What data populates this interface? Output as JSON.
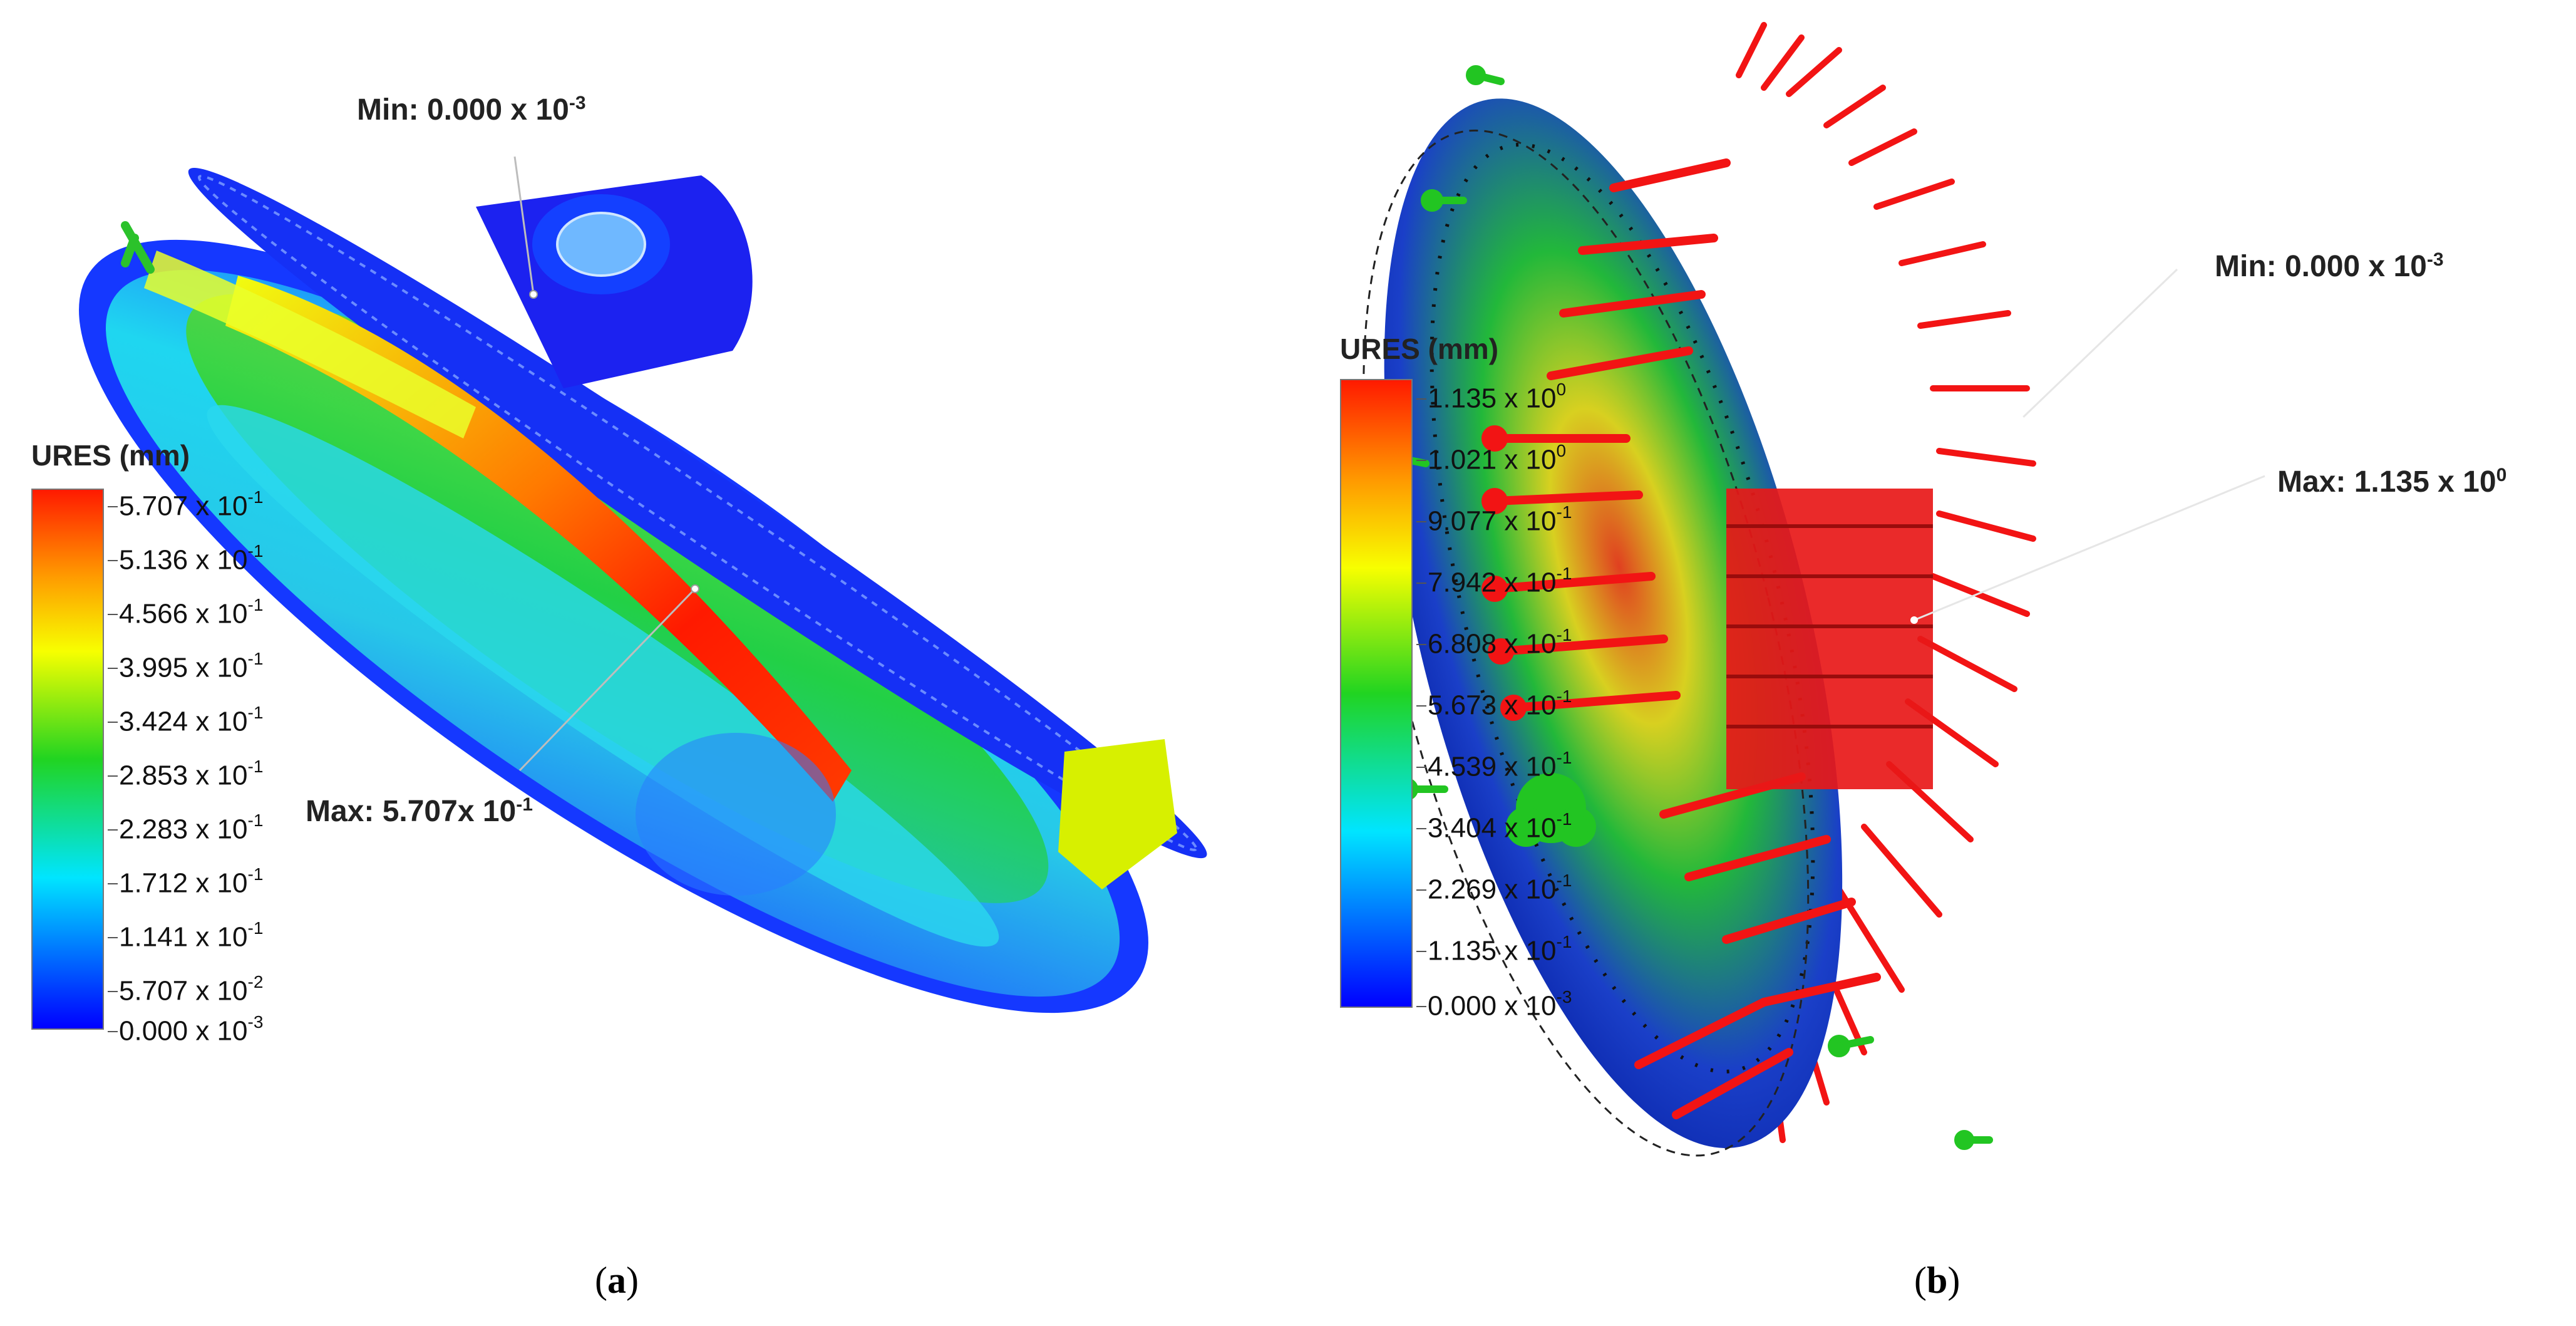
{
  "panel_a": {
    "legend": {
      "title": "URES (mm)",
      "ticks": [
        {
          "mantissa": "5.707",
          "exp": "-1"
        },
        {
          "mantissa": "5.136",
          "exp": "-1"
        },
        {
          "mantissa": "4.566",
          "exp": "-1"
        },
        {
          "mantissa": "3.995",
          "exp": "-1"
        },
        {
          "mantissa": "3.424",
          "exp": "-1"
        },
        {
          "mantissa": "2.853",
          "exp": "-1"
        },
        {
          "mantissa": "2.283",
          "exp": "-1"
        },
        {
          "mantissa": "1.712",
          "exp": "-1"
        },
        {
          "mantissa": "1.141",
          "exp": "-1"
        },
        {
          "mantissa": "5.707",
          "exp": "-2"
        },
        {
          "mantissa": "0.000",
          "exp": "-3"
        }
      ]
    },
    "min_label": {
      "text": "Min: 0.000 x 10",
      "exp": "-3"
    },
    "max_label": {
      "text": "Max: 5.707x 10",
      "exp": "-1"
    },
    "caption": {
      "open": "(",
      "letter": "a",
      "close": ")"
    }
  },
  "panel_b": {
    "legend": {
      "title": "URES (mm)",
      "ticks": [
        {
          "mantissa": "1.135",
          "exp": "0"
        },
        {
          "mantissa": "1.021",
          "exp": "0"
        },
        {
          "mantissa": "9.077",
          "exp": "-1"
        },
        {
          "mantissa": "7.942",
          "exp": "-1"
        },
        {
          "mantissa": "6.808",
          "exp": "-1"
        },
        {
          "mantissa": "5.673",
          "exp": "-1"
        },
        {
          "mantissa": "4.539",
          "exp": "-1"
        },
        {
          "mantissa": "3.404",
          "exp": "-1"
        },
        {
          "mantissa": "2.269",
          "exp": "-1"
        },
        {
          "mantissa": "1.135",
          "exp": "-1"
        },
        {
          "mantissa": "0.000",
          "exp": "-3"
        }
      ]
    },
    "min_label": {
      "text": "Min: 0.000 x 10",
      "exp": "-3"
    },
    "max_label": {
      "text": "Max: 1.135 x 10",
      "exp": "0"
    },
    "caption": {
      "open": "(",
      "letter": "b",
      "close": ")"
    }
  },
  "colors": {
    "scale_red": "#ff1a00",
    "scale_orange": "#ff9a00",
    "scale_yellow": "#f7ff00",
    "scale_green": "#21d421",
    "scale_cyan": "#00e5ff",
    "scale_blue": "#0000ff",
    "arrow_red": "#f21414",
    "fixture_green": "#22c522"
  }
}
